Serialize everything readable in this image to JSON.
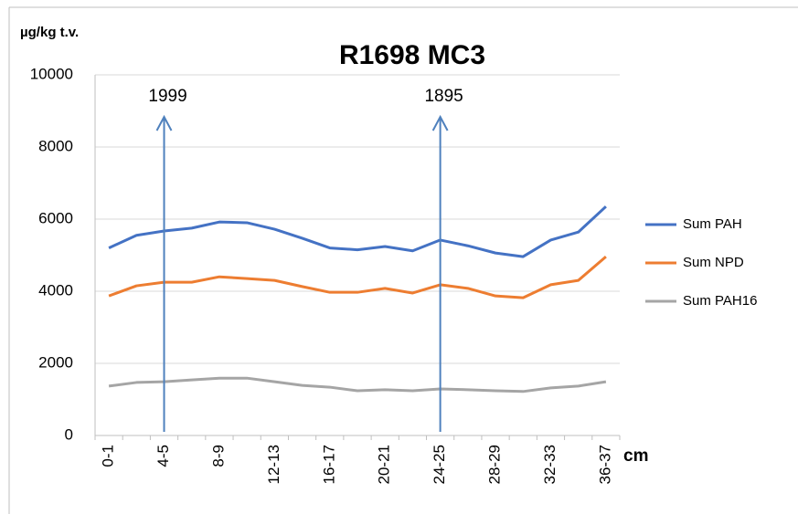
{
  "chart_data": {
    "type": "line",
    "title": "R1698 MC3",
    "y_label": "µg/kg t.v.",
    "x_label": "cm",
    "categories": [
      "0-1",
      null,
      "4-5",
      null,
      "8-9",
      null,
      "12-13",
      null,
      "16-17",
      null,
      "20-21",
      null,
      "24-25",
      null,
      "28-29",
      null,
      "32-33",
      null,
      "36-37"
    ],
    "series": [
      {
        "name": "Sum PAH",
        "color": "#4472c4",
        "values": [
          5200,
          5550,
          5670,
          5750,
          5920,
          5900,
          5720,
          5470,
          5200,
          5150,
          5240,
          5120,
          5420,
          5260,
          5060,
          4960,
          5420,
          5640,
          6350
        ]
      },
      {
        "name": "Sum NPD",
        "color": "#ed7d31",
        "values": [
          3870,
          4150,
          4250,
          4250,
          4400,
          4350,
          4300,
          4130,
          3970,
          3970,
          4080,
          3950,
          4180,
          4080,
          3870,
          3820,
          4180,
          4300,
          4960
        ]
      },
      {
        "name": "Sum PAH16",
        "color": "#a5a5a5",
        "values": [
          1370,
          1470,
          1490,
          1540,
          1590,
          1590,
          1490,
          1390,
          1340,
          1240,
          1270,
          1240,
          1290,
          1270,
          1240,
          1220,
          1320,
          1370,
          1490
        ]
      }
    ],
    "annotations": [
      {
        "text": "1999",
        "category": "4-5",
        "color": "#4f81bd"
      },
      {
        "text": "1895",
        "category": "24-25",
        "color": "#4f81bd"
      }
    ],
    "ylim": [
      0,
      10000
    ],
    "yticks": [
      0,
      2000,
      4000,
      6000,
      8000,
      10000
    ],
    "grid": true,
    "legend": "right"
  }
}
